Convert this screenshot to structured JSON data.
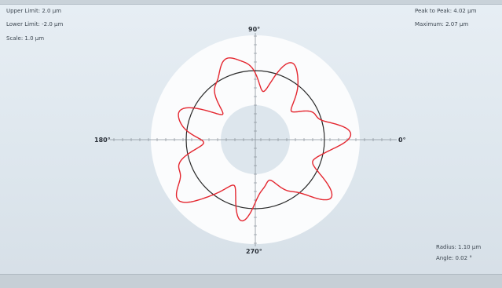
{
  "info_left": {
    "upper_limit": "Upper Limit: 2.0 μm",
    "lower_limit": "Lower Limit: -2.0 μm",
    "scale": "Scale: 1.0 μm"
  },
  "info_right": {
    "peak_to_peak": "Peak to Peak: 4.02 μm",
    "maximum": "Maximum: 2.07 μm"
  },
  "readout": {
    "radius": "Radius: 1.10 μm",
    "angle": "Angle: 0.02 °"
  },
  "plot": {
    "angle_labels": {
      "top": "90°",
      "right": "0°",
      "bottom": "270°",
      "left": "180°"
    },
    "colors": {
      "trace": "#e4262f",
      "reference": "#2a2a2a",
      "band": "#fbfcfd",
      "inner": "#dde6ed",
      "axis": "#8a939b"
    }
  }
}
